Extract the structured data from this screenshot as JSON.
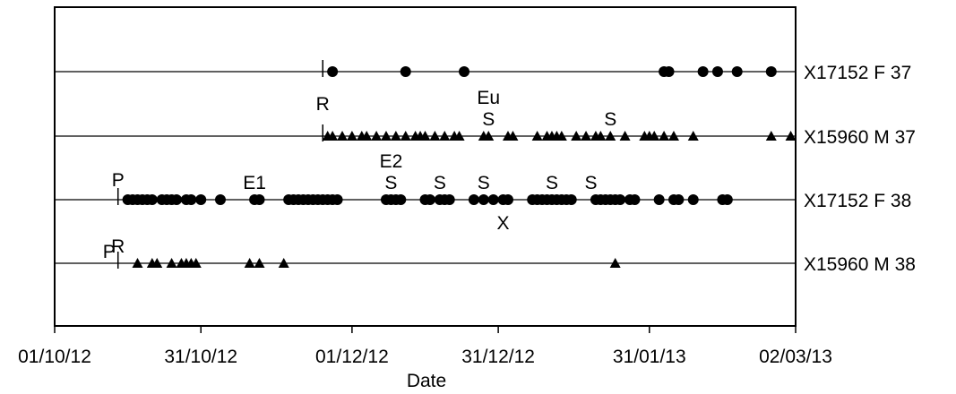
{
  "chart_data": {
    "type": "scatter",
    "title": "",
    "xlabel": "Date",
    "ylabel": "",
    "x_ticks": [
      "01/10/12",
      "31/10/12",
      "01/12/12",
      "31/12/12",
      "31/01/13",
      "02/03/13"
    ],
    "xlim": [
      "01/10/12",
      "02/03/13"
    ],
    "grid": false,
    "legend": "none",
    "rows": [
      {
        "name": "X17152 F 37",
        "marker": "circle",
        "points": [
          "27/11/12",
          "12/12/12",
          "24/12/12",
          "03/02/13",
          "04/02/13",
          "11/02/13",
          "14/02/13",
          "18/02/13",
          "25/02/13"
        ]
      },
      {
        "name": "X15960 M 37",
        "marker": "triangle",
        "points": [
          "26/11/12",
          "27/11/12",
          "29/11/12",
          "01/12/12",
          "03/12/12",
          "04/12/12",
          "06/12/12",
          "08/12/12",
          "10/12/12",
          "12/12/12",
          "14/12/12",
          "15/12/12",
          "16/12/12",
          "18/12/12",
          "20/12/12",
          "22/12/12",
          "23/12/12",
          "28/12/12",
          "29/12/12",
          "02/01/13",
          "03/01/13",
          "08/01/13",
          "10/01/13",
          "11/01/13",
          "12/01/13",
          "13/01/13",
          "16/01/13",
          "18/01/13",
          "20/01/13",
          "21/01/13",
          "23/01/13",
          "26/01/13",
          "30/01/13",
          "31/01/13",
          "01/02/13",
          "03/02/13",
          "05/02/13",
          "09/02/13",
          "25/02/13",
          "01/03/13"
        ]
      },
      {
        "name": "X17152 F 38",
        "marker": "circle",
        "points": [
          "16/10/12",
          "17/10/12",
          "18/10/12",
          "19/10/12",
          "20/10/12",
          "21/10/12",
          "23/10/12",
          "24/10/12",
          "25/10/12",
          "26/10/12",
          "28/10/12",
          "29/10/12",
          "31/10/12",
          "04/11/12",
          "11/11/12",
          "12/11/12",
          "18/11/12",
          "19/11/12",
          "20/11/12",
          "21/11/12",
          "22/11/12",
          "23/11/12",
          "24/11/12",
          "25/11/12",
          "26/11/12",
          "27/11/12",
          "28/11/12",
          "08/12/12",
          "09/12/12",
          "10/12/12",
          "11/12/12",
          "16/12/12",
          "17/12/12",
          "19/12/12",
          "20/12/12",
          "21/12/12",
          "26/12/12",
          "28/12/12",
          "30/12/12",
          "01/01/13",
          "02/01/13",
          "07/01/13",
          "08/01/13",
          "09/01/13",
          "10/01/13",
          "11/01/13",
          "12/01/13",
          "13/01/13",
          "14/01/13",
          "15/01/13",
          "20/01/13",
          "21/01/13",
          "22/01/13",
          "23/01/13",
          "24/01/13",
          "25/01/13",
          "27/01/13",
          "28/01/13",
          "02/02/13",
          "05/02/13",
          "06/02/13",
          "09/02/13",
          "15/02/13",
          "16/02/13"
        ]
      },
      {
        "name": "X15960 M 38",
        "marker": "triangle",
        "points": [
          "18/10/12",
          "21/10/12",
          "22/10/12",
          "25/10/12",
          "27/10/12",
          "28/10/12",
          "29/10/12",
          "30/10/12",
          "10/11/12",
          "12/11/12",
          "17/11/12",
          "24/01/13"
        ]
      }
    ],
    "event_markers": [
      {
        "row": 0,
        "x": "25/11/12",
        "label": "R",
        "label_pos": "below"
      },
      {
        "row": 1,
        "x": "25/11/12",
        "label": "",
        "label_pos": "none"
      },
      {
        "row": 2,
        "x": "14/10/12",
        "label": "P",
        "label_pos": "above"
      },
      {
        "row": 3,
        "x": "14/10/12",
        "label": "P",
        "label_pos": "left"
      }
    ],
    "annotations": [
      {
        "row": 1,
        "x": "29/12/12",
        "text": "S",
        "level": 1
      },
      {
        "row": 1,
        "x": "29/12/12",
        "text": "Eu",
        "level": 2
      },
      {
        "row": 1,
        "x": "23/01/13",
        "text": "S",
        "level": 1
      },
      {
        "row": 2,
        "x": "11/11/12",
        "text": "E1",
        "level": 1
      },
      {
        "row": 2,
        "x": "09/12/12",
        "text": "S",
        "level": 1
      },
      {
        "row": 2,
        "x": "09/12/12",
        "text": "E2",
        "level": 2
      },
      {
        "row": 2,
        "x": "19/12/12",
        "text": "S",
        "level": 1
      },
      {
        "row": 2,
        "x": "28/12/12",
        "text": "S",
        "level": 1
      },
      {
        "row": 2,
        "x": "11/01/13",
        "text": "S",
        "level": 1
      },
      {
        "row": 2,
        "x": "19/01/13",
        "text": "S",
        "level": 1
      },
      {
        "row": 2,
        "x": "01/01/13",
        "text": "X",
        "level": -1
      },
      {
        "row": 3,
        "x": "14/10/12",
        "text": "R",
        "level": 1
      }
    ]
  }
}
